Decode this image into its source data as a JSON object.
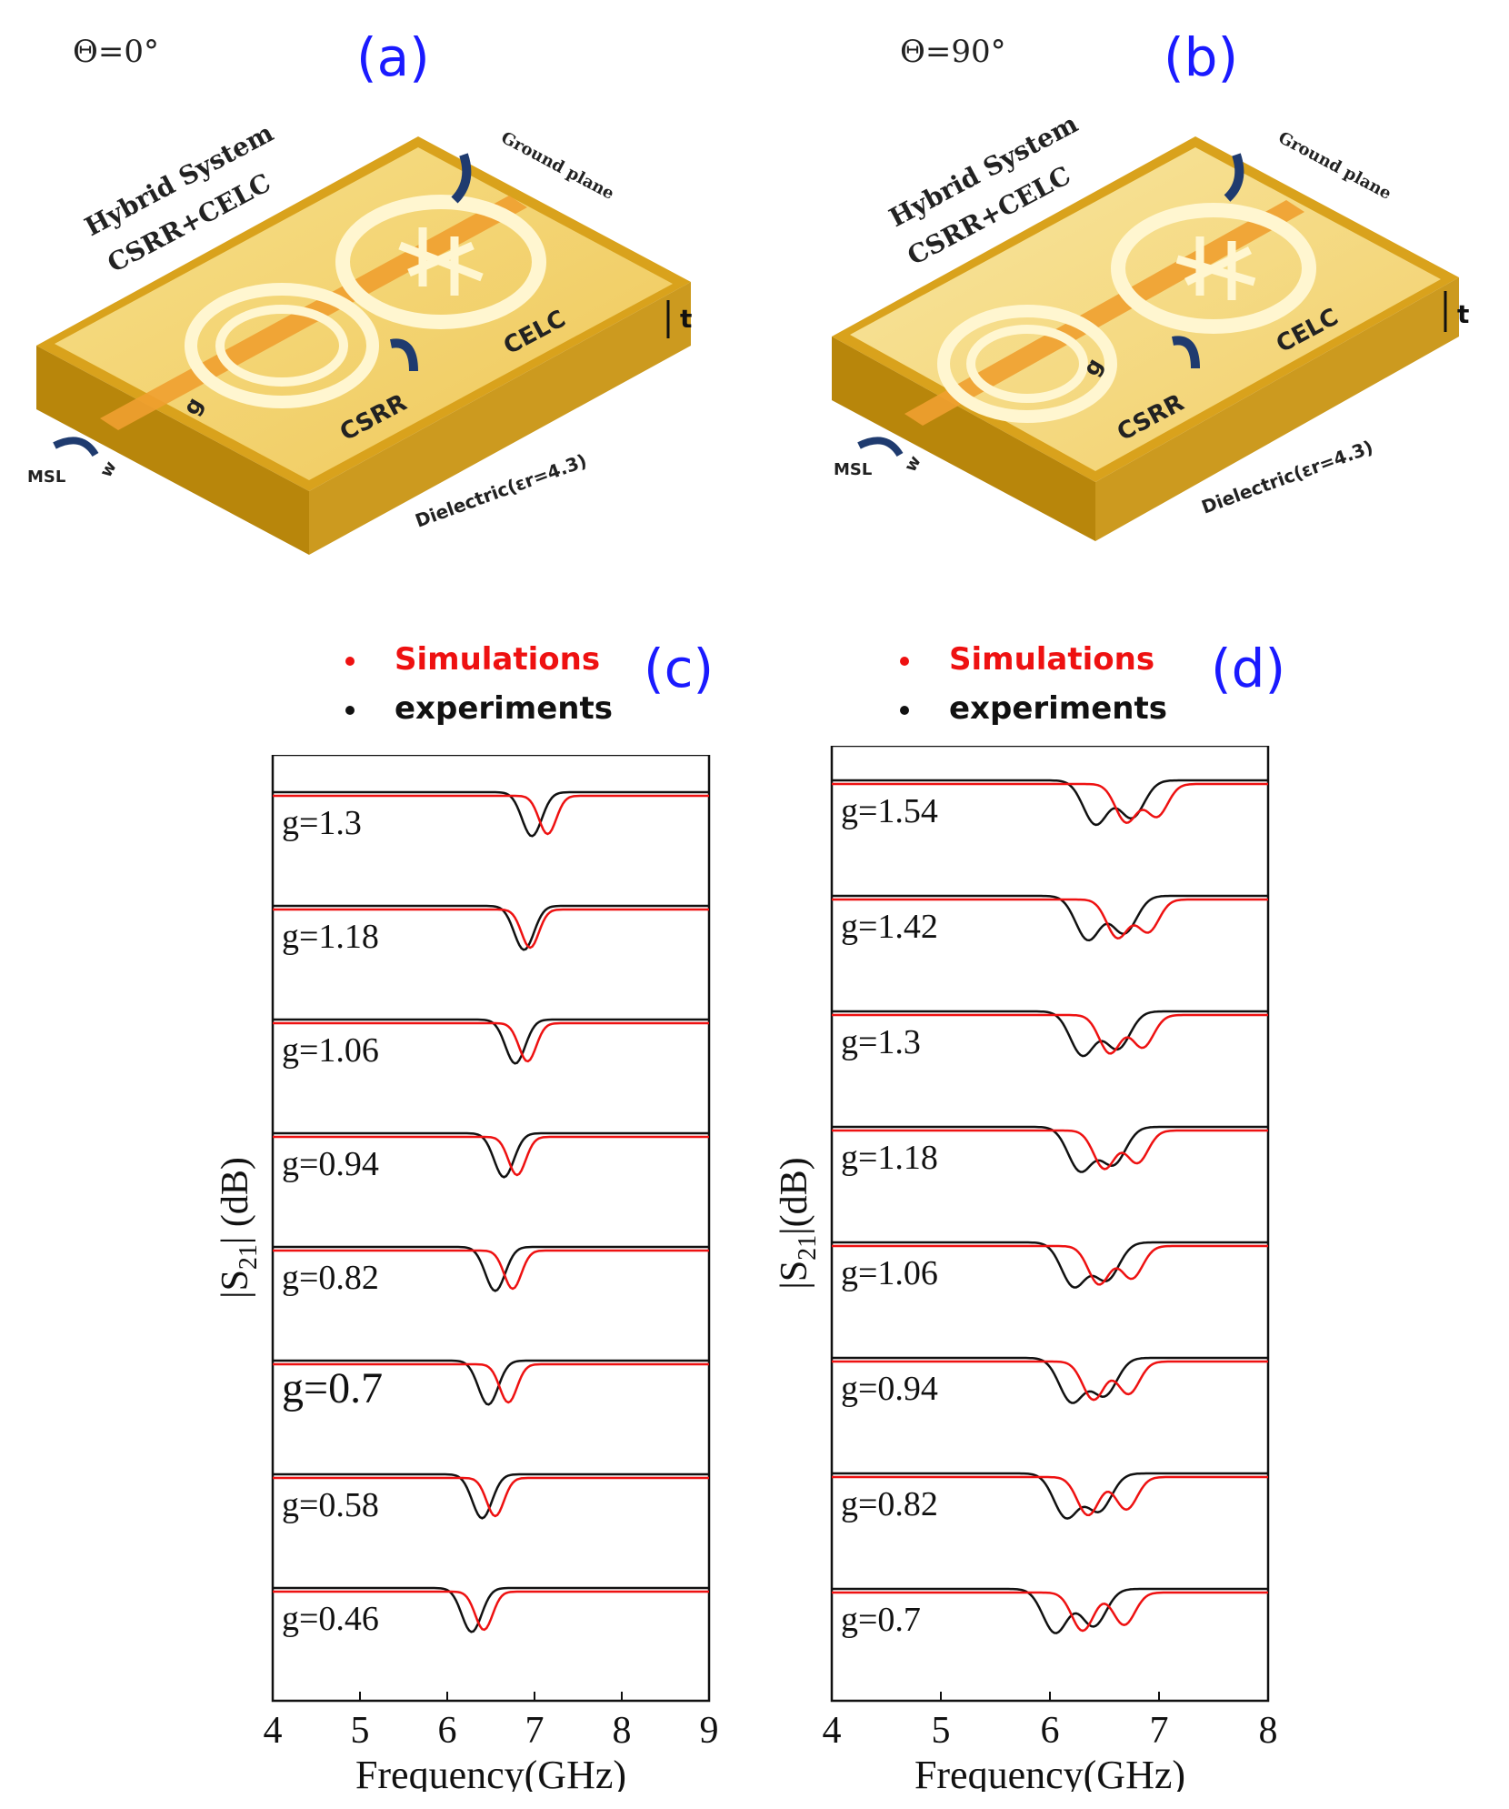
{
  "figure": {
    "panels": [
      {
        "id": "a",
        "letter": "(a)",
        "angle": "Θ=0°",
        "labels": {
          "system_line1": "Hybrid System",
          "system_line2": "CSRR+CELC",
          "ground": "Ground plane",
          "t": "t",
          "celc": "CELC",
          "csrr": "CSRR",
          "g": "g",
          "w": "w",
          "msl": "MSL",
          "dielectric": "Dielectric(εr=4.3)"
        }
      },
      {
        "id": "b",
        "letter": "(b)",
        "angle": "Θ=90°",
        "labels": {
          "system_line1": "Hybrid System",
          "system_line2": "CSRR+CELC",
          "ground": "Ground plane",
          "t": "t",
          "celc": "CELC",
          "csrr": "CSRR",
          "g": "g",
          "w": "w",
          "msl": "MSL",
          "dielectric": "Dielectric(εr=4.3)"
        }
      }
    ],
    "colors": {
      "simulation": "#ee1111",
      "experiment": "#111111",
      "letter": "#1a1aff",
      "board": "#e0b03a"
    }
  },
  "chart_data": [
    {
      "id": "c",
      "letter": "(c)",
      "type": "line",
      "legend": {
        "simulation": "Simulations",
        "experiment": "experiments"
      },
      "xlabel": "Frequency(GHz)",
      "ylabel_main": "|S",
      "ylabel_sub": "21",
      "ylabel_tail": "| (dB)",
      "xlim": [
        4,
        9
      ],
      "xticks": [
        "4",
        "5",
        "6",
        "7",
        "8",
        "9"
      ],
      "traces": [
        {
          "label": "g=1.3",
          "sim_dip_x": 7.15,
          "exp_dip_x": 6.97
        },
        {
          "label": "g=1.18",
          "sim_dip_x": 6.95,
          "exp_dip_x": 6.88
        },
        {
          "label": "g=1.06",
          "sim_dip_x": 6.92,
          "exp_dip_x": 6.78
        },
        {
          "label": "g=0.94",
          "sim_dip_x": 6.8,
          "exp_dip_x": 6.65
        },
        {
          "label": "g=0.82",
          "sim_dip_x": 6.75,
          "exp_dip_x": 6.55
        },
        {
          "label": "g=0.7",
          "sim_dip_x": 6.7,
          "exp_dip_x": 6.47
        },
        {
          "label": "g=0.58",
          "sim_dip_x": 6.55,
          "exp_dip_x": 6.4
        },
        {
          "label": "g=0.46",
          "sim_dip_x": 6.42,
          "exp_dip_x": 6.28
        }
      ]
    },
    {
      "id": "d",
      "letter": "(d)",
      "type": "line",
      "legend": {
        "simulation": "Simulations",
        "experiment": "experiments"
      },
      "xlabel": "Frequency(GHz)",
      "ylabel_main": "|S",
      "ylabel_sub": "21",
      "ylabel_tail": "|(dB)",
      "xlim": [
        4,
        8
      ],
      "xticks": [
        "4",
        "5",
        "6",
        "7",
        "8"
      ],
      "traces": [
        {
          "label": "g=1.54",
          "sim_dip_x": [
            6.7,
            6.98
          ],
          "exp_dip_x": [
            6.42,
            6.75
          ]
        },
        {
          "label": "g=1.42",
          "sim_dip_x": [
            6.62,
            6.9
          ],
          "exp_dip_x": [
            6.35,
            6.68
          ]
        },
        {
          "label": "g=1.3",
          "sim_dip_x": [
            6.55,
            6.85
          ],
          "exp_dip_x": [
            6.3,
            6.62
          ]
        },
        {
          "label": "g=1.18",
          "sim_dip_x": [
            6.5,
            6.8
          ],
          "exp_dip_x": [
            6.28,
            6.58
          ]
        },
        {
          "label": "g=1.06",
          "sim_dip_x": [
            6.45,
            6.75
          ],
          "exp_dip_x": [
            6.22,
            6.52
          ]
        },
        {
          "label": "g=0.94",
          "sim_dip_x": [
            6.4,
            6.72
          ],
          "exp_dip_x": [
            6.2,
            6.5
          ]
        },
        {
          "label": "g=0.82",
          "sim_dip_x": [
            6.35,
            6.7
          ],
          "exp_dip_x": [
            6.15,
            6.45
          ]
        },
        {
          "label": "g=0.7",
          "sim_dip_x": [
            6.3,
            6.68
          ],
          "exp_dip_x": [
            6.05,
            6.4
          ]
        }
      ]
    }
  ]
}
